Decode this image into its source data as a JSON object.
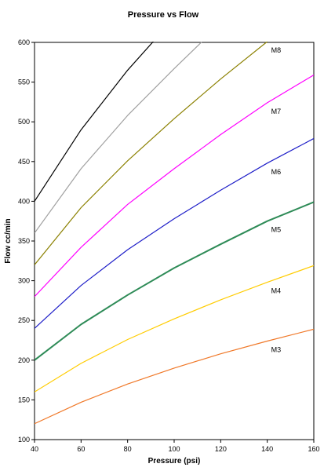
{
  "chart_data": {
    "type": "line",
    "title": "Pressure vs Flow",
    "xlabel": "Pressure (psi)",
    "ylabel": "Flow cc/min",
    "xlim": [
      40,
      160
    ],
    "ylim": [
      100,
      600
    ],
    "xticks": [
      40,
      60,
      80,
      100,
      120,
      140,
      160
    ],
    "yticks": [
      100,
      150,
      200,
      250,
      300,
      350,
      400,
      450,
      500,
      550,
      600
    ],
    "grid": false,
    "legend": "none",
    "series": [
      {
        "name": "M3",
        "label": "M3",
        "color": "#F07828",
        "width": 1.2,
        "x": [
          40,
          60,
          80,
          100,
          120,
          140,
          160
        ],
        "y": [
          120,
          147,
          170,
          190,
          208,
          224,
          239
        ]
      },
      {
        "name": "M4",
        "label": "M4",
        "color": "#FFCC00",
        "width": 1.2,
        "x": [
          40,
          60,
          80,
          100,
          120,
          140,
          160
        ],
        "y": [
          160,
          196,
          226,
          252,
          276,
          298,
          319
        ]
      },
      {
        "name": "M5",
        "label": "M5",
        "color": "#2E8B57",
        "width": 2,
        "x": [
          40,
          60,
          80,
          100,
          120,
          140,
          160
        ],
        "y": [
          200,
          245,
          282,
          316,
          346,
          375,
          399
        ]
      },
      {
        "name": "M6",
        "label": "M6",
        "color": "#1E1EC8",
        "width": 1.2,
        "x": [
          40,
          60,
          80,
          100,
          120,
          140,
          160
        ],
        "y": [
          240,
          294,
          339,
          378,
          414,
          448,
          479
        ]
      },
      {
        "name": "M7",
        "label": "M7",
        "color": "#FF00FF",
        "width": 1.2,
        "x": [
          40,
          60,
          80,
          100,
          120,
          140,
          160
        ],
        "y": [
          280,
          342,
          396,
          441,
          484,
          524,
          559
        ]
      },
      {
        "name": "M8",
        "label": "M8",
        "color": "#8B8000",
        "width": 1.2,
        "x": [
          40,
          60,
          80,
          100,
          120,
          140
        ],
        "y": [
          320,
          392,
          451,
          504,
          554,
          601
        ]
      },
      {
        "name": "",
        "label": "",
        "color": "#A0A0A0",
        "width": 1.2,
        "x": [
          40,
          60,
          80,
          100,
          112
        ],
        "y": [
          360,
          441,
          508,
          567,
          601
        ]
      },
      {
        "name": "",
        "label": "",
        "color": "#000000",
        "width": 1.2,
        "x": [
          40,
          60,
          80,
          91
        ],
        "y": [
          400,
          490,
          565,
          601
        ]
      }
    ]
  }
}
